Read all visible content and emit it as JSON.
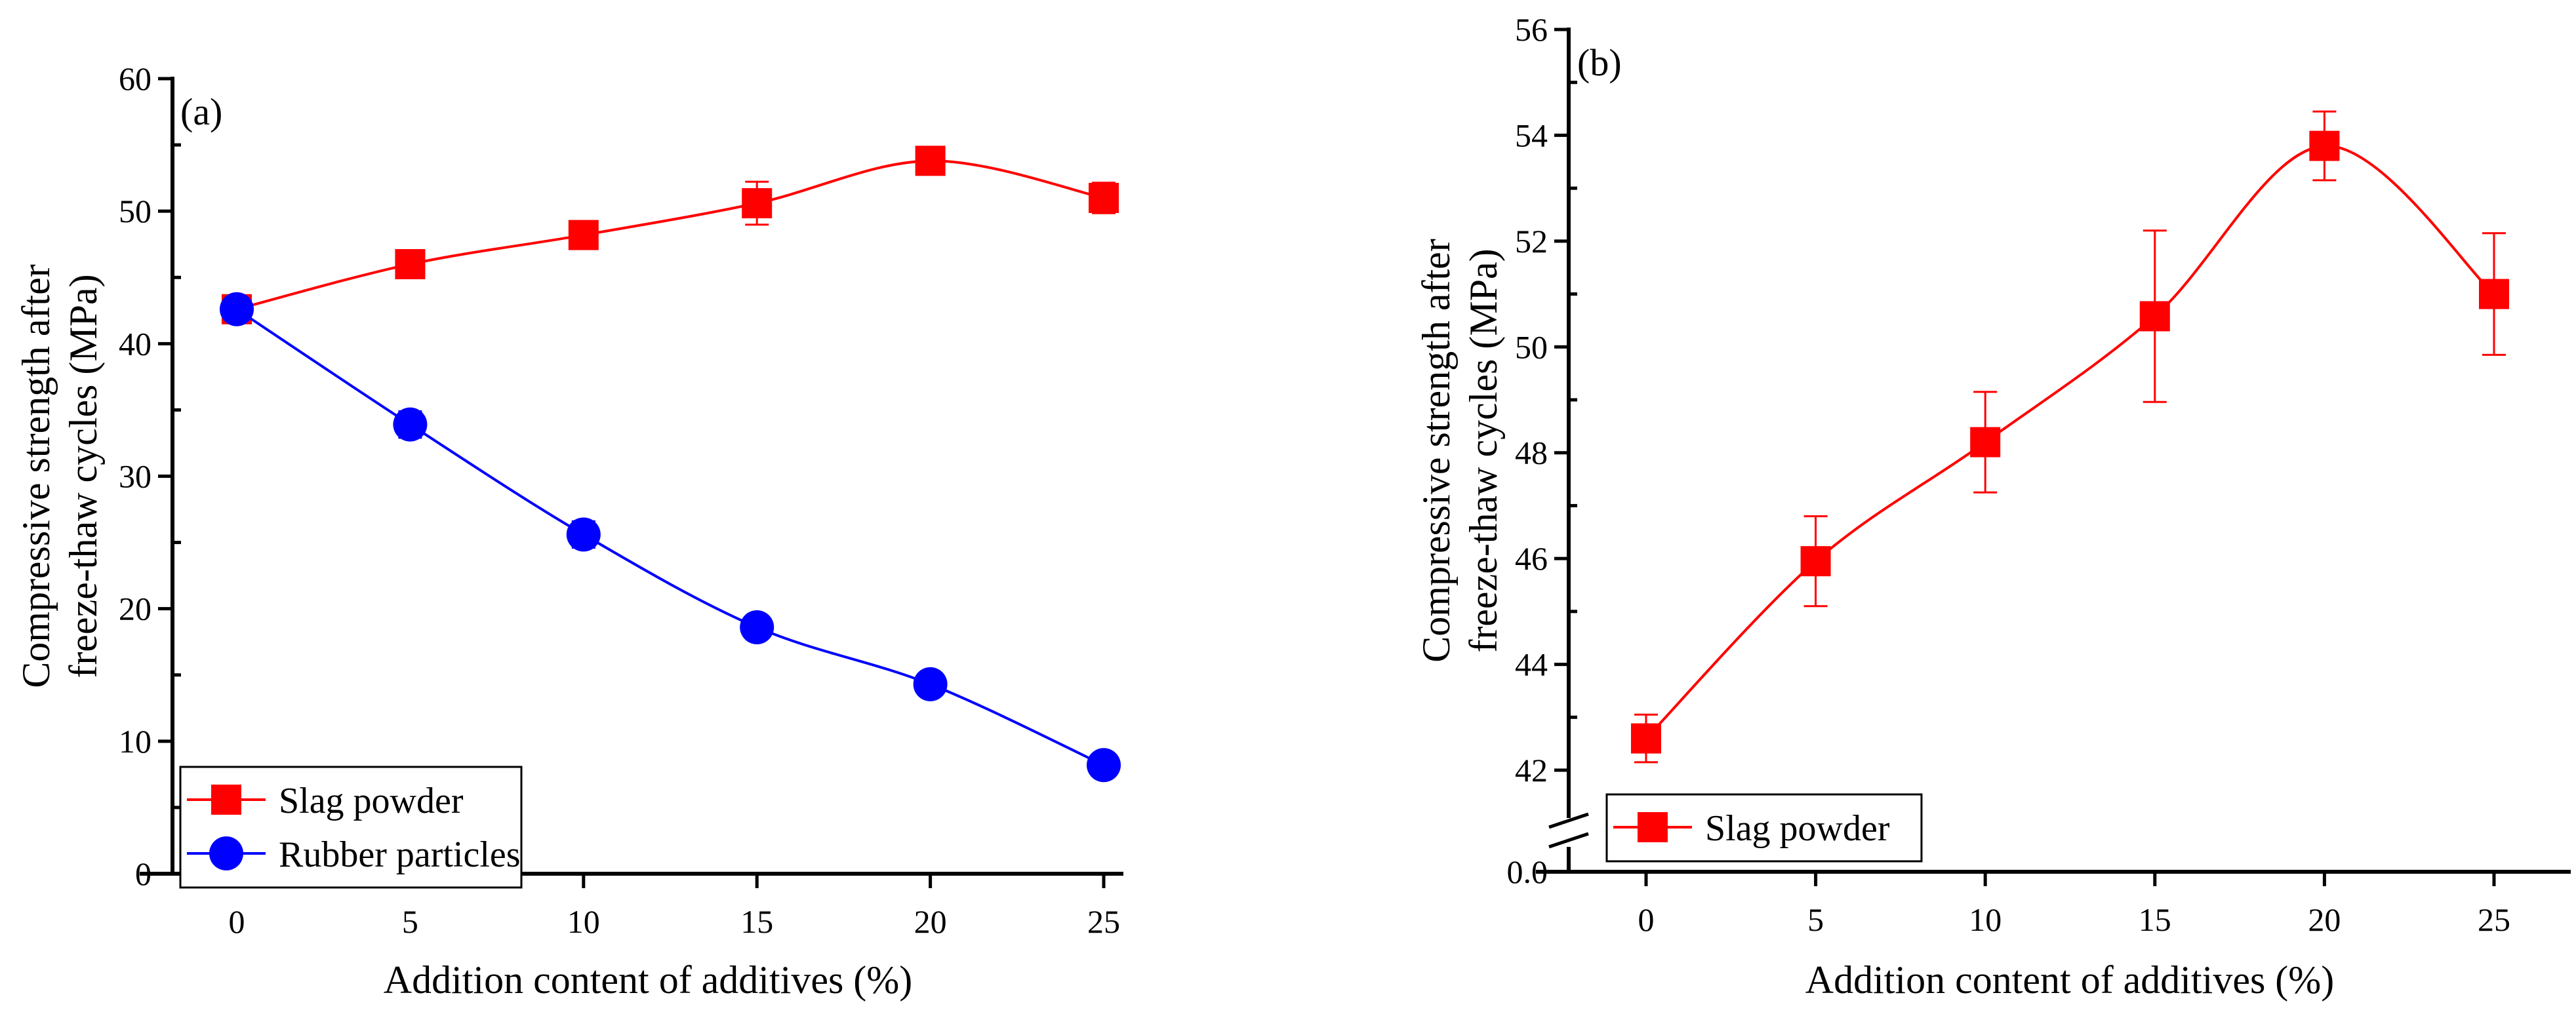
{
  "chart_data": [
    {
      "type": "line",
      "panel_label": "(a)",
      "xlabel": "Addition content of additives (%)",
      "ylabel": [
        "Compressive strength after",
        "freeze-thaw cycles (MPa)"
      ],
      "x": [
        0,
        5,
        10,
        15,
        20,
        25
      ],
      "xticks": [
        "0",
        "5",
        "10",
        "15",
        "20",
        "25"
      ],
      "ylim": [
        0,
        60
      ],
      "yticks": [
        "0",
        "10",
        "20",
        "30",
        "40",
        "50",
        "60"
      ],
      "legend_position": "bottom-left",
      "series": [
        {
          "name": "Slag powder",
          "marker": "square",
          "color": "#ff0000",
          "values": [
            42.6,
            46.0,
            48.2,
            50.6,
            53.8,
            51.0
          ],
          "errors": [
            0.45,
            0.85,
            0.95,
            1.62,
            0.65,
            1.15
          ]
        },
        {
          "name": "Rubber particles",
          "marker": "circle",
          "color": "#0000ff",
          "values": [
            42.6,
            33.9,
            25.6,
            18.6,
            14.3,
            8.2
          ],
          "errors": [
            0.3,
            1.0,
            1.0,
            0.6,
            0.5,
            0.5
          ]
        }
      ]
    },
    {
      "type": "line",
      "panel_label": "(b)",
      "xlabel": "Addition content of additives (%)",
      "ylabel": [
        "Compressive strength after",
        "freeze-thaw cycles (MPa)"
      ],
      "x": [
        0,
        5,
        10,
        15,
        20,
        25
      ],
      "xticks": [
        "0",
        "5",
        "10",
        "15",
        "20",
        "25"
      ],
      "ylim": [
        42,
        56
      ],
      "axis_break": true,
      "yticks": [
        "0.0",
        "42",
        "44",
        "46",
        "48",
        "50",
        "52",
        "54",
        "56"
      ],
      "legend_position": "bottom-left",
      "series": [
        {
          "name": "Slag powder",
          "marker": "square",
          "color": "#ff0000",
          "values": [
            42.6,
            45.95,
            48.2,
            50.58,
            53.8,
            51.0
          ],
          "errors": [
            0.45,
            0.85,
            0.95,
            1.62,
            0.65,
            1.15
          ]
        }
      ]
    }
  ]
}
